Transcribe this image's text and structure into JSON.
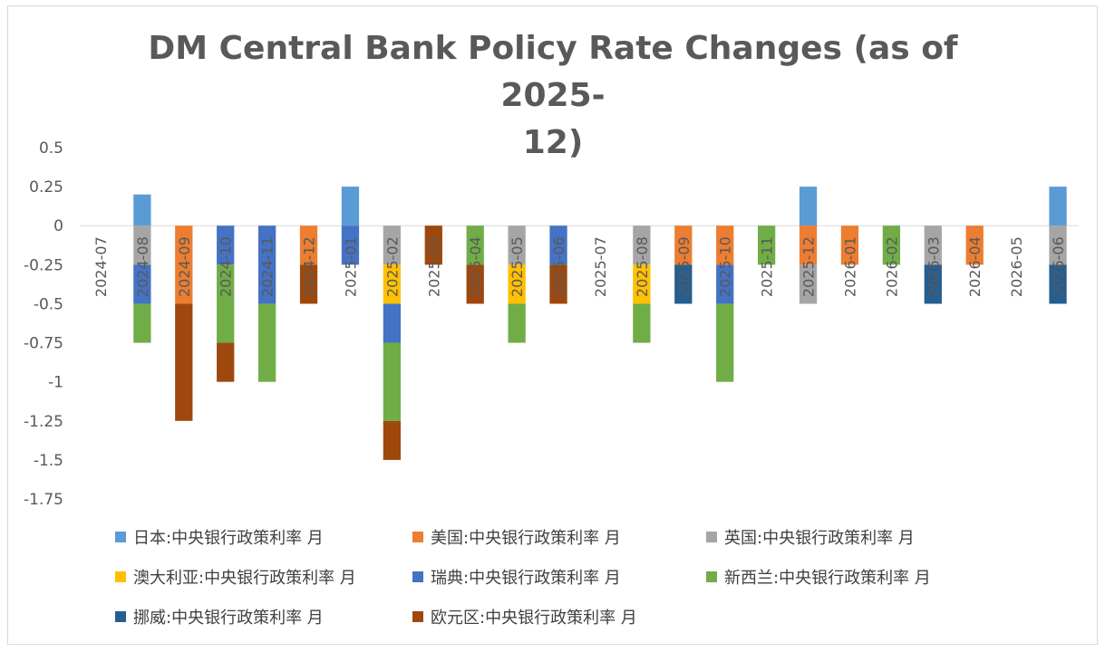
{
  "chart_data": {
    "type": "bar",
    "stacked": true,
    "title": "DM Central Bank Policy Rate Changes (as of 2025-12)",
    "title_lines": [
      "DM Central Bank Policy Rate Changes (as of 2025-",
      "12)"
    ],
    "xlabel": "",
    "ylabel": "",
    "ylim": [
      -1.75,
      0.5
    ],
    "yticks": [
      0.5,
      0.25,
      0,
      -0.25,
      -0.5,
      -0.75,
      -1,
      -1.25,
      -1.5,
      -1.75
    ],
    "ytick_labels": [
      "0.5",
      "0.25",
      "0",
      "-0.25",
      "-0.5",
      "-0.75",
      "-1",
      "-1.25",
      "-1.5",
      "-1.75"
    ],
    "grid": false,
    "legend_position": "bottom",
    "categories": [
      "2024-07",
      "2024-08",
      "2024-09",
      "2024-10",
      "2024-11",
      "2024-12",
      "2025-01",
      "2025-02",
      "2025-03",
      "2025-04",
      "2025-05",
      "2025-06",
      "2025-07",
      "2025-08",
      "2025-09",
      "2025-10",
      "2025-11",
      "2025-12",
      "2026-01",
      "2026-02",
      "2026-03",
      "2026-04",
      "2026-05",
      "2026-06"
    ],
    "series": [
      {
        "name": "日本:中央银行政策利率 月",
        "color": "#5b9bd5",
        "values": [
          0,
          0.2,
          0,
          0,
          0,
          0,
          0.25,
          0,
          0,
          0,
          0,
          0,
          0,
          0,
          0,
          0,
          0,
          0.25,
          0,
          0,
          0,
          0,
          0,
          0.25
        ]
      },
      {
        "name": "美国:中央银行政策利率 月",
        "color": "#ed7d31",
        "values": [
          0,
          0,
          -0.5,
          0,
          0,
          -0.25,
          0,
          0,
          0,
          0,
          0,
          0,
          0,
          0,
          -0.25,
          -0.25,
          0,
          -0.25,
          -0.25,
          0,
          0,
          -0.25,
          0,
          0
        ]
      },
      {
        "name": "英国:中央银行政策利率 月",
        "color": "#a5a5a5",
        "values": [
          0,
          -0.25,
          0,
          0,
          0,
          0,
          0,
          -0.25,
          0,
          0,
          -0.25,
          0,
          0,
          -0.25,
          0,
          0,
          0,
          -0.25,
          0,
          0,
          -0.25,
          0,
          0,
          -0.25
        ]
      },
      {
        "name": "澳大利亚:中央银行政策利率 月",
        "color": "#ffc000",
        "values": [
          0,
          0,
          0,
          0,
          0,
          0,
          0,
          -0.25,
          0,
          0,
          -0.25,
          0,
          0,
          -0.25,
          0,
          0,
          0,
          0,
          0,
          0,
          0,
          0,
          0,
          0
        ]
      },
      {
        "name": "瑞典:中央银行政策利率 月",
        "color": "#4472c4",
        "values": [
          0,
          -0.25,
          0,
          -0.25,
          -0.5,
          0,
          -0.25,
          -0.25,
          0,
          0,
          0,
          -0.25,
          0,
          0,
          0,
          -0.25,
          0,
          0,
          0,
          0,
          0,
          0,
          0,
          0
        ]
      },
      {
        "name": "新西兰:中央银行政策利率 月",
        "color": "#70ad47",
        "values": [
          0,
          -0.25,
          0,
          -0.5,
          -0.5,
          0,
          0,
          -0.5,
          0,
          -0.25,
          -0.25,
          0,
          0,
          -0.25,
          0,
          -0.5,
          -0.25,
          0,
          0,
          -0.25,
          0,
          0,
          0,
          0
        ]
      },
      {
        "name": "挪威:中央银行政策利率 月",
        "color": "#255e91",
        "values": [
          0,
          0,
          0,
          0,
          0,
          0,
          0,
          0,
          0,
          0,
          0,
          0,
          0,
          0,
          -0.25,
          0,
          0,
          0,
          0,
          0,
          -0.25,
          0,
          0,
          -0.25
        ]
      },
      {
        "name": "欧元区:中央银行政策利率 月",
        "color": "#9e480e",
        "values": [
          0,
          0,
          -0.75,
          -0.25,
          0,
          -0.25,
          0,
          -0.25,
          -0.25,
          -0.25,
          0,
          -0.25,
          0,
          0,
          0,
          0,
          0,
          0,
          0,
          0,
          0,
          0,
          0,
          0
        ]
      }
    ]
  }
}
